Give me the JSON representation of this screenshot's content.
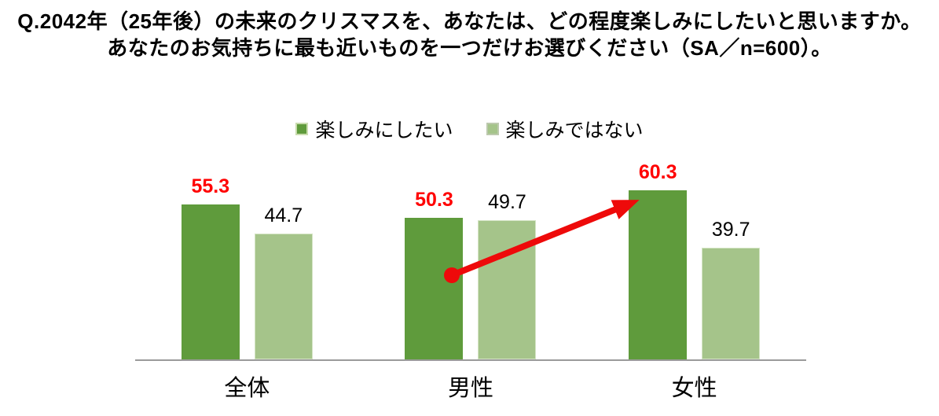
{
  "title": {
    "line1": "Q.2042年（25年後）の未来のクリスマスを、あなたは、どの程度楽しみにしたいと思いますか。",
    "line2": "あなたのお気持ちに最も近いものを一つだけお選びください（SA／n=600）。"
  },
  "legend": [
    {
      "label": "楽しみにしたい",
      "color": "#5f9b3c",
      "swatch_border": "#c9dcae"
    },
    {
      "label": "楽しみではない",
      "color": "#a5c48a",
      "swatch_border": "#bcc9ad"
    }
  ],
  "chart_data": {
    "type": "bar",
    "categories": [
      "全体",
      "男性",
      "女性"
    ],
    "series": [
      {
        "name": "楽しみにしたい",
        "values": [
          55.3,
          50.3,
          60.3
        ],
        "color": "#5f9b3c",
        "bar_border": "none",
        "label_color": "#ff0000",
        "label_bold": true
      },
      {
        "name": "楽しみではない",
        "values": [
          44.7,
          49.7,
          39.7
        ],
        "color": "#a5c48a",
        "bar_border": "#d4e4c4",
        "label_color": "#000000",
        "label_bold": false
      }
    ],
    "ylim": [
      0,
      72
    ],
    "grid": false,
    "legend_position": "top",
    "axis_line_color": "#9b9b9b",
    "annotation": {
      "type": "arrow",
      "description": "red arrow from 男性 楽しみにしたい bar to 女性 楽しみにしたい bar",
      "from_category": "男性",
      "to_category": "女性",
      "series": "楽しみにしたい",
      "color": "#ee0a0a"
    }
  }
}
